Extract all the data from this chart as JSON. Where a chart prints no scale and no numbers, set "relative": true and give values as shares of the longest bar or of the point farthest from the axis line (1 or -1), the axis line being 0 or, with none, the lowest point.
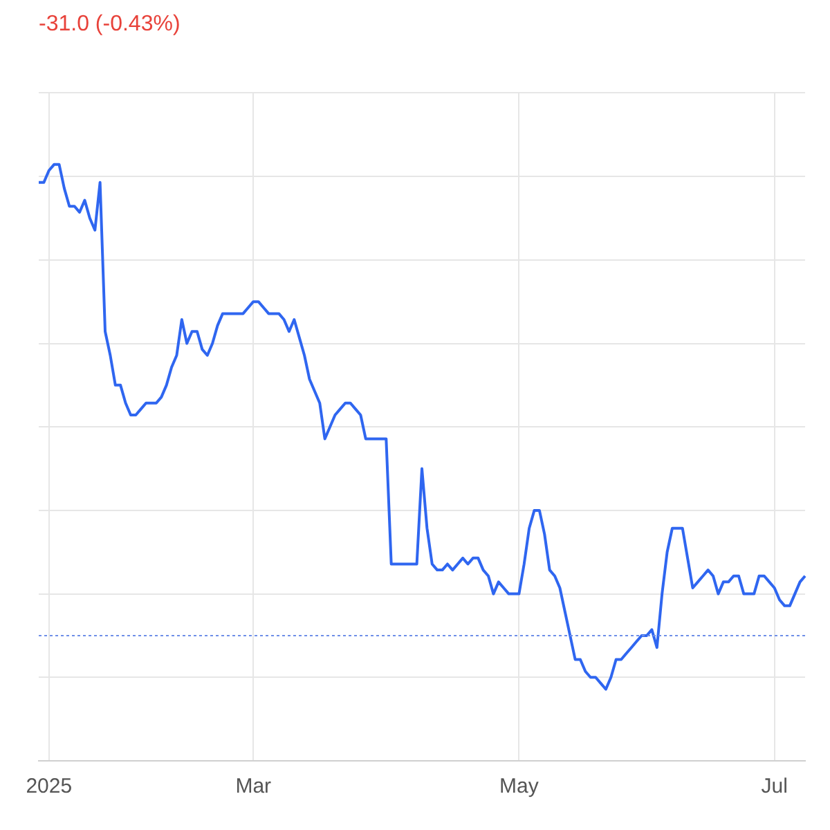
{
  "chart_data": {
    "type": "line",
    "title": "-31.0 (-0.43%)",
    "relative": true,
    "grid": true,
    "legend": false,
    "tick_labels": "x",
    "marker": "none",
    "line_style": "solid",
    "categories": [
      null,
      null,
      "2025",
      null,
      null,
      null,
      null,
      null,
      null,
      null,
      null,
      null,
      null,
      null,
      null,
      null,
      null,
      null,
      null,
      null,
      null,
      null,
      null,
      null,
      null,
      null,
      null,
      null,
      null,
      null,
      null,
      null,
      null,
      null,
      null,
      null,
      null,
      null,
      null,
      null,
      null,
      null,
      "Mar",
      null,
      null,
      null,
      null,
      null,
      null,
      null,
      null,
      null,
      null,
      null,
      null,
      null,
      null,
      null,
      null,
      null,
      null,
      null,
      null,
      null,
      null,
      null,
      null,
      null,
      null,
      null,
      null,
      null,
      null,
      null,
      null,
      null,
      null,
      null,
      null,
      null,
      null,
      null,
      null,
      null,
      null,
      null,
      null,
      null,
      null,
      null,
      null,
      null,
      null,
      null,
      "May",
      null,
      null,
      null,
      null,
      null,
      null,
      null,
      null,
      null,
      null,
      null,
      null,
      null,
      null,
      null,
      null,
      null,
      null,
      null,
      null,
      null,
      null,
      null,
      null,
      null,
      null,
      null,
      null,
      null,
      null,
      null,
      null,
      null,
      null,
      null,
      null,
      null,
      null,
      null,
      null,
      null,
      null,
      null,
      null,
      null,
      null,
      null,
      null,
      null,
      "Jul",
      null,
      null,
      null,
      null,
      null,
      null
    ],
    "series": [
      {
        "color": "#2f66f0",
        "values": [
          0.97,
          0.97,
          0.99,
          1.0,
          1.0,
          0.96,
          0.93,
          0.93,
          0.92,
          0.94,
          0.91,
          0.89,
          0.97,
          0.72,
          0.68,
          0.63,
          0.63,
          0.6,
          0.58,
          0.58,
          0.59,
          0.6,
          0.6,
          0.6,
          0.61,
          0.63,
          0.66,
          0.68,
          0.74,
          0.7,
          0.72,
          0.72,
          0.69,
          0.68,
          0.7,
          0.73,
          0.75,
          0.75,
          0.75,
          0.75,
          0.75,
          0.76,
          0.77,
          0.77,
          0.76,
          0.75,
          0.75,
          0.75,
          0.74,
          0.72,
          0.74,
          0.71,
          0.68,
          0.64,
          0.62,
          0.6,
          0.54,
          0.56,
          0.58,
          0.59,
          0.6,
          0.6,
          0.59,
          0.58,
          0.54,
          0.54,
          0.54,
          0.54,
          0.54,
          0.33,
          0.33,
          0.33,
          0.33,
          0.33,
          0.33,
          0.49,
          0.39,
          0.33,
          0.32,
          0.32,
          0.33,
          0.32,
          0.33,
          0.34,
          0.33,
          0.34,
          0.34,
          0.32,
          0.31,
          0.28,
          0.3,
          0.29,
          0.28,
          0.28,
          0.28,
          0.33,
          0.39,
          0.42,
          0.42,
          0.38,
          0.32,
          0.31,
          0.29,
          0.25,
          0.21,
          0.17,
          0.17,
          0.15,
          0.14,
          0.14,
          0.13,
          0.12,
          0.14,
          0.17,
          0.17,
          0.18,
          0.19,
          0.2,
          0.21,
          0.21,
          0.22,
          0.19,
          0.28,
          0.35,
          0.39,
          0.39,
          0.39,
          0.34,
          0.29,
          0.3,
          0.31,
          0.32,
          0.31,
          0.28,
          0.3,
          0.3,
          0.31,
          0.31,
          0.28,
          0.28,
          0.28,
          0.31,
          0.31,
          0.3,
          0.29,
          0.27,
          0.26,
          0.26,
          0.28,
          0.3,
          0.31
        ]
      }
    ],
    "ref_lines": [
      {
        "axis": "y",
        "value": 0.21,
        "color": "#6f8fe8",
        "line_style": "dotted"
      }
    ]
  }
}
